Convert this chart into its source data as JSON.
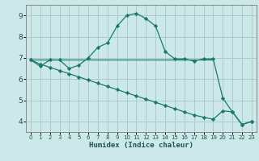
{
  "xlabel": "Humidex (Indice chaleur)",
  "bg_color": "#cce8e8",
  "grid_color": "#aacccc",
  "line_color": "#1a7a6e",
  "xlim": [
    -0.5,
    23.5
  ],
  "ylim": [
    3.5,
    9.5
  ],
  "xticks": [
    0,
    1,
    2,
    3,
    4,
    5,
    6,
    7,
    8,
    9,
    10,
    11,
    12,
    13,
    14,
    15,
    16,
    17,
    18,
    19,
    20,
    21,
    22,
    23
  ],
  "yticks": [
    4,
    5,
    6,
    7,
    8,
    9
  ],
  "line1_x": [
    0,
    1,
    2,
    3,
    4,
    5,
    6,
    7,
    8,
    9,
    10,
    11,
    12,
    13,
    14,
    15,
    16,
    17,
    18,
    19,
    20,
    21,
    22,
    23
  ],
  "line1_y": [
    6.9,
    6.6,
    6.9,
    6.9,
    6.5,
    6.65,
    7.0,
    7.5,
    7.7,
    8.5,
    9.0,
    9.1,
    8.85,
    8.5,
    7.3,
    6.95,
    6.95,
    6.85,
    6.95,
    6.95,
    5.1,
    4.45,
    3.85,
    4.0
  ],
  "line2_x": [
    0,
    10,
    19
  ],
  "line2_y": [
    6.9,
    6.9,
    6.9
  ],
  "line3_x": [
    0,
    1,
    2,
    3,
    4,
    5,
    6,
    7,
    8,
    9,
    10,
    11,
    12,
    13,
    14,
    15,
    16,
    17,
    18,
    19,
    20,
    21,
    22,
    23
  ],
  "line3_y": [
    6.9,
    6.7,
    6.55,
    6.4,
    6.25,
    6.1,
    5.95,
    5.8,
    5.65,
    5.5,
    5.35,
    5.2,
    5.05,
    4.9,
    4.75,
    4.6,
    4.45,
    4.3,
    4.2,
    4.1,
    4.5,
    4.45,
    3.85,
    4.0
  ]
}
